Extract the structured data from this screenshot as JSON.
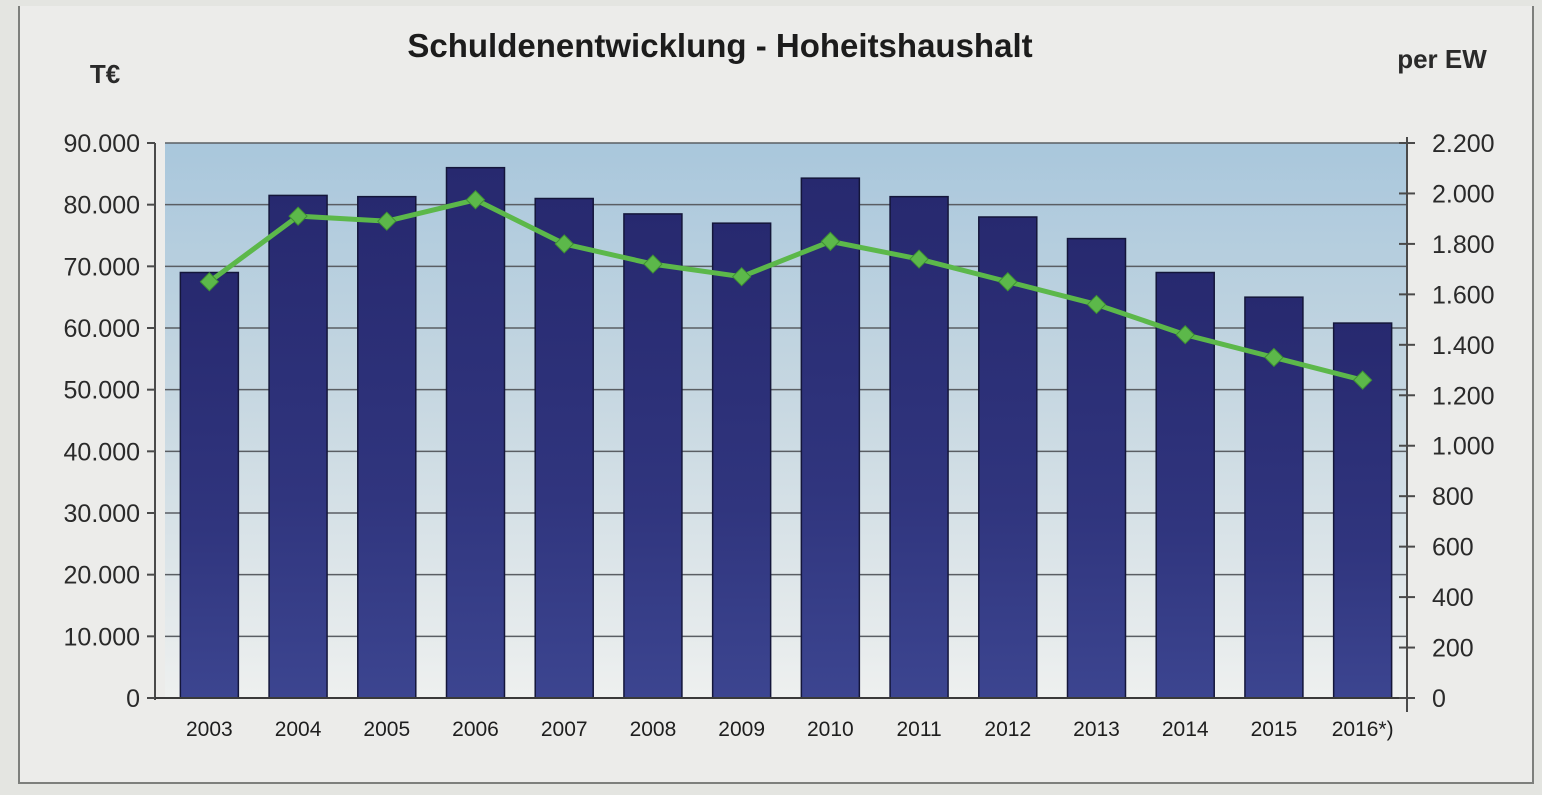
{
  "chart_data": {
    "type": "bar",
    "title": "Schuldenentwicklung - Hoheitshaushalt",
    "left_unit": "T€",
    "right_unit": "per EW",
    "categories": [
      "2003",
      "2004",
      "2005",
      "2006",
      "2007",
      "2008",
      "2009",
      "2010",
      "2011",
      "2012",
      "2013",
      "2014",
      "2015",
      "2016*)"
    ],
    "y_left": {
      "range": [
        0,
        90000
      ],
      "ticks": [
        0,
        10000,
        20000,
        30000,
        40000,
        50000,
        60000,
        70000,
        80000,
        90000
      ],
      "tick_labels": [
        "0",
        "10.000",
        "20.000",
        "30.000",
        "40.000",
        "50.000",
        "60.000",
        "70.000",
        "80.000",
        "90.000"
      ]
    },
    "y_right": {
      "range": [
        0,
        2200
      ],
      "ticks": [
        0,
        200,
        400,
        600,
        800,
        1000,
        1200,
        1400,
        1600,
        1800,
        2000,
        2200
      ],
      "tick_labels": [
        "0",
        "200",
        "400",
        "600",
        "800",
        "1.000",
        "1.200",
        "1.400",
        "1.600",
        "1.800",
        "2.000",
        "2.200"
      ]
    },
    "series": [
      {
        "type": "bar",
        "axis": "left",
        "values": [
          69000,
          81500,
          81300,
          86000,
          81000,
          78500,
          77000,
          84300,
          81300,
          78000,
          74500,
          69000,
          65000,
          60800
        ],
        "color": "#2b2f7a"
      },
      {
        "type": "line",
        "axis": "right",
        "values": [
          1650,
          1910,
          1890,
          1975,
          1800,
          1720,
          1670,
          1810,
          1740,
          1650,
          1560,
          1440,
          1350,
          1260
        ],
        "color": "#5cb84a"
      }
    ],
    "grid": true,
    "legend": "none"
  }
}
